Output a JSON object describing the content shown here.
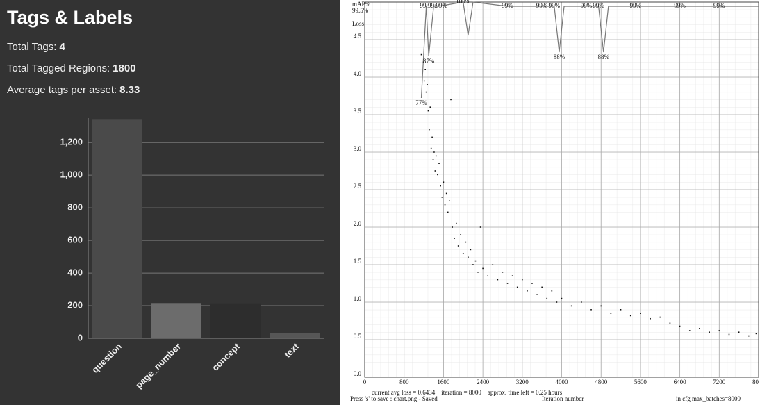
{
  "panel": {
    "title": "Tags & Labels",
    "stats": [
      {
        "label": "Total Tags:",
        "value": 4
      },
      {
        "label": "Total Tagged Regions:",
        "value": 1800
      },
      {
        "label": "Average tags per asset:",
        "value": 8.33
      }
    ]
  },
  "chart_data": [
    {
      "type": "bar",
      "categories": [
        "question",
        "page_number",
        "concept",
        "text"
      ],
      "values": [
        1340,
        216,
        214,
        30
      ],
      "colors": [
        "#4a4a4a",
        "#6c6c6c",
        "#2d2d2d",
        "#565656"
      ],
      "ylim": [
        0,
        1350
      ],
      "yticks": [
        0,
        200,
        400,
        600,
        800,
        {
          "value": 1000,
          "label": "1,000"
        },
        {
          "value": 1200,
          "label": "1,200"
        }
      ],
      "grid": true
    },
    {
      "type": "scatter",
      "y_label": "Loss",
      "y2_label": "mAP%",
      "x_label": "Iteration number",
      "xlim": [
        0,
        8000
      ],
      "xticks": [
        0,
        800,
        1600,
        2400,
        3200,
        4000,
        4800,
        5600,
        6400,
        7200,
        {
          "value": 8000,
          "label": "80"
        }
      ],
      "ylim": [
        0,
        5
      ],
      "yticks": [
        {
          "value": 0,
          "label": "0.0"
        },
        0.5,
        {
          "value": 1,
          "label": "1.0"
        },
        1.5,
        {
          "value": 2,
          "label": "2.0"
        },
        2.5,
        {
          "value": 3,
          "label": "3.0"
        },
        3.5,
        {
          "value": 4,
          "label": "4.0"
        },
        4.5
      ],
      "y2lim": [
        10,
        100
      ],
      "y2ticks": [
        {
          "value": 99.5,
          "label": "99.5%"
        }
      ],
      "grid": true,
      "series": [
        {
          "color": "#111111",
          "x": [
            1150,
            1170,
            1190,
            1210,
            1230,
            1250,
            1270,
            1290,
            1310,
            1330,
            1350,
            1370,
            1390,
            1410,
            1430,
            1450,
            1480,
            1510,
            1540,
            1570,
            1600,
            1630,
            1660,
            1690,
            1720,
            1750,
            1780,
            1820,
            1860,
            1900,
            1950,
            2000,
            2050,
            2100,
            2150,
            2200,
            2250,
            2300,
            2350,
            2400,
            2500,
            2600,
            2700,
            2800,
            2900,
            3000,
            3100,
            3200,
            3300,
            3400,
            3500,
            3600,
            3700,
            3800,
            3900,
            4000,
            4200,
            4400,
            4600,
            4800,
            5000,
            5200,
            5400,
            5600,
            5800,
            6000,
            6200,
            6400,
            6600,
            6800,
            7000,
            7200,
            7400,
            7600,
            7800,
            7950
          ],
          "values": [
            4.3,
            4.05,
            4.2,
            3.95,
            4.1,
            3.8,
            3.9,
            3.55,
            3.3,
            3.6,
            3.05,
            3.2,
            2.9,
            3.0,
            2.75,
            2.95,
            2.7,
            2.85,
            2.55,
            2.4,
            2.6,
            2.3,
            2.45,
            2.2,
            2.35,
            3.7,
            2.0,
            1.85,
            2.05,
            1.75,
            1.9,
            1.65,
            1.8,
            1.6,
            1.7,
            1.5,
            1.55,
            1.4,
            2.0,
            1.45,
            1.35,
            1.5,
            1.3,
            1.4,
            1.25,
            1.35,
            1.2,
            1.3,
            1.15,
            1.25,
            1.1,
            1.2,
            1.05,
            1.15,
            1.0,
            1.05,
            0.95,
            1.0,
            0.9,
            0.95,
            0.85,
            0.9,
            0.82,
            0.85,
            0.78,
            0.8,
            0.72,
            0.68,
            0.62,
            0.65,
            0.6,
            0.62,
            0.57,
            0.6,
            0.55,
            0.58
          ]
        },
        {
          "axis": "y2",
          "color": "#777777",
          "x": [
            1150,
            1250,
            1300,
            1400,
            1500,
            2000,
            2100,
            2200,
            2900,
            3600,
            3850,
            3950,
            4050,
            4500,
            4750,
            4850,
            4950,
            5500,
            6400,
            7200,
            8000
          ],
          "values": [
            77,
            99,
            87,
            99,
            99,
            100,
            92,
            100,
            99,
            99,
            99,
            88,
            99,
            99,
            99,
            88,
            99,
            99,
            99,
            99,
            99
          ],
          "value_labels": [
            "77%",
            null,
            "87%",
            "99:99:99%",
            null,
            "100%",
            null,
            null,
            "99%",
            "99%",
            "99%",
            "88%",
            null,
            "99%",
            "99%",
            "88%",
            null,
            "99%",
            "99%",
            "99%",
            null
          ]
        }
      ],
      "footer": [
        "current avg loss = 0.6434    iteration = 8000    approx. time left = 0.25 hours",
        "Press 's' to save : chart.png - Saved",
        "in cfg max_batches=8000"
      ]
    }
  ]
}
